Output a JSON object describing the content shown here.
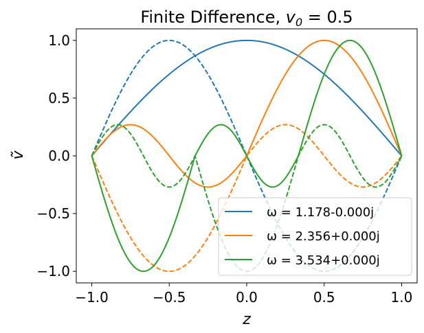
{
  "chart_data": {
    "type": "line",
    "title": "Finite Difference, v₀ = 0.5",
    "title_parts": {
      "prefix": "Finite Difference, ",
      "var": "v",
      "sub": "0",
      "suffix": " = 0.5"
    },
    "xlabel": "z",
    "ylabel": "ṽ",
    "xlim": [
      -1.1,
      1.1
    ],
    "ylim": [
      -1.1,
      1.1
    ],
    "xticks": [
      -1.0,
      -0.5,
      0.0,
      0.5,
      1.0
    ],
    "xtick_labels": [
      "−1.0",
      "−0.5",
      "0.0",
      "0.5",
      "1.0"
    ],
    "yticks": [
      -1.0,
      -0.5,
      0.0,
      0.5,
      1.0
    ],
    "ytick_labels": [
      "−1.0",
      "−0.5",
      "0.0",
      "0.5",
      "1.0"
    ],
    "grid": false,
    "legend_position": "lower-right",
    "series": [
      {
        "name": "ω = 1.178-0.000j",
        "color": "#1f77b4",
        "mode": 1,
        "x": [
          -1.0,
          -0.75,
          -0.5,
          -0.25,
          0.0,
          0.25,
          0.5,
          0.75,
          1.0
        ],
        "solid_y": [
          0.0,
          0.383,
          0.707,
          0.924,
          1.0,
          0.924,
          0.707,
          0.383,
          0.0
        ],
        "dashed_y": [
          0.0,
          0.707,
          1.0,
          0.707,
          0.0,
          -0.707,
          -1.0,
          -0.707,
          0.0
        ]
      },
      {
        "name": "ω = 2.356+0.000j",
        "color": "#ff7f0e",
        "mode": 2,
        "x": [
          -1.0,
          -0.75,
          -0.5,
          -0.25,
          0.0,
          0.25,
          0.5,
          0.75,
          1.0
        ],
        "solid_y": [
          0.0,
          0.27,
          0.0,
          -0.27,
          0.0,
          0.5,
          1.0,
          0.7,
          0.0
        ],
        "dashed_y": [
          0.0,
          -0.5,
          -1.0,
          -0.5,
          0.0,
          0.27,
          0.0,
          -0.27,
          0.0
        ]
      },
      {
        "name": "ω = 3.534+0.000j",
        "color": "#2ca02c",
        "mode": 3,
        "x": [
          -1.0,
          -0.833,
          -0.667,
          -0.5,
          -0.333,
          -0.167,
          0.0,
          0.167,
          0.333,
          0.5,
          0.667,
          0.833,
          1.0
        ],
        "solid_y": [
          0.0,
          -0.7,
          -1.0,
          -0.5,
          0.0,
          0.27,
          0.0,
          -0.27,
          0.0,
          0.5,
          1.0,
          0.7,
          0.0
        ],
        "dashed_y": [
          0.0,
          -0.27,
          0.0,
          0.27,
          0.0,
          -0.5,
          -1.0,
          -0.5,
          0.0,
          0.27,
          0.0,
          -0.27,
          0.0
        ]
      }
    ]
  }
}
